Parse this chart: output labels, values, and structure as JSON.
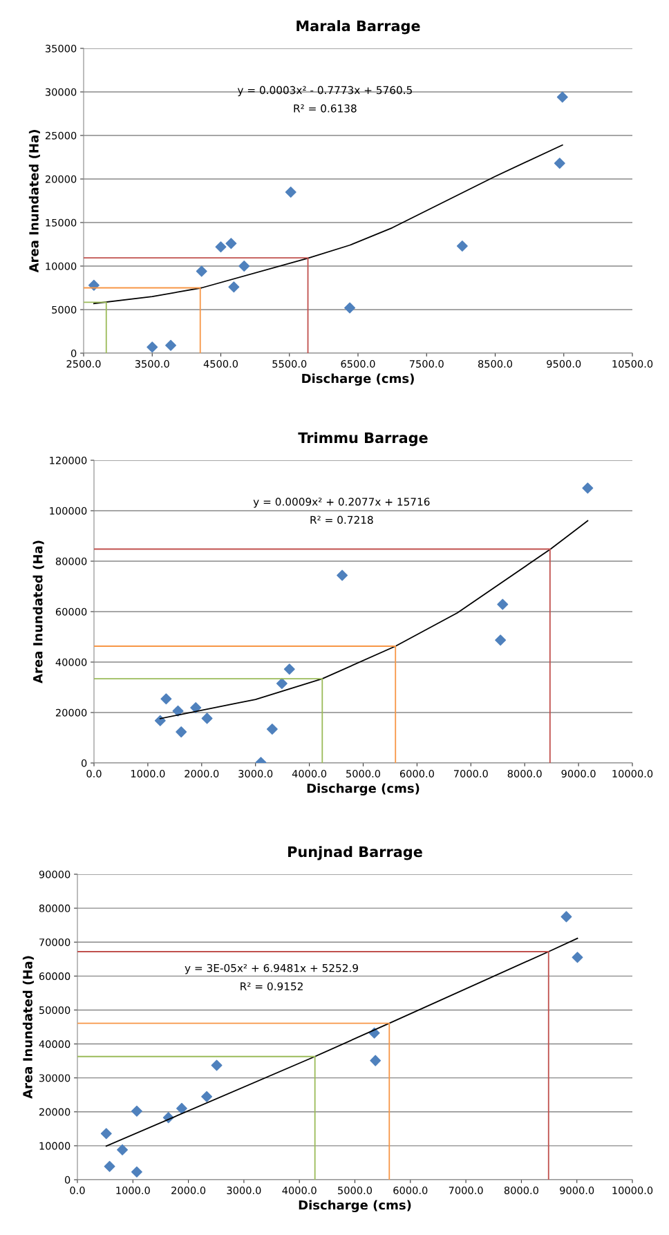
{
  "chart_data": [
    {
      "type": "scatter",
      "title": "Marala Barrage",
      "xlabel": "Discharge (cms)",
      "ylabel": "Area Inundated (Ha)",
      "annotations": [
        "y = 0.0003x² - 0.7773x + 5760.5",
        "R² = 0.6138"
      ],
      "grid": "y",
      "legend": false,
      "xlim": [
        2500,
        10500
      ],
      "xticks": [
        {
          "value": 2500,
          "label": "2500.0"
        },
        {
          "value": 3500,
          "label": "3500.0"
        },
        {
          "value": 4500,
          "label": "4500.0"
        },
        {
          "value": 5500,
          "label": "5500.0"
        },
        {
          "value": 6500,
          "label": "6500.0"
        },
        {
          "value": 7500,
          "label": "7500.0"
        },
        {
          "value": 8500,
          "label": "8500.0"
        },
        {
          "value": 9500,
          "label": "9500.0"
        },
        {
          "value": 10500,
          "label": "10500.0"
        }
      ],
      "ylim": [
        0,
        35000
      ],
      "yticks": [
        0,
        5000,
        10000,
        15000,
        20000,
        25000,
        30000,
        35000
      ],
      "series": [
        {
          "marker": "diamond",
          "color": "#4f81bd",
          "x": [
            2650,
            3500,
            3770,
            4220,
            4500,
            4650,
            4690,
            4840,
            5520,
            6380,
            8020,
            9440,
            9480
          ],
          "values": [
            7800,
            700,
            900,
            9400,
            12200,
            12600,
            7600,
            10000,
            18500,
            5200,
            12300,
            21800,
            29400
          ]
        },
        {
          "type": "line",
          "marker": "none",
          "color": "#000000",
          "x": [
            2650,
            3500,
            4220,
            5770,
            6380,
            7000,
            8500,
            9480
          ],
          "values": [
            5700,
            6500,
            7500,
            10900,
            12400,
            14400,
            20300,
            23900
          ]
        },
        {
          "type": "line",
          "marker": "none",
          "color": "#9bbb59",
          "x": [
            2500,
            2830,
            2830
          ],
          "values": [
            5850,
            5850,
            0
          ]
        },
        {
          "type": "line",
          "marker": "none",
          "color": "#f79646",
          "x": [
            2500,
            4200,
            4200
          ],
          "values": [
            7500,
            7500,
            0
          ]
        },
        {
          "type": "line",
          "marker": "none",
          "color": "#c0504d",
          "x": [
            2500,
            5770,
            5770
          ],
          "values": [
            10950,
            10950,
            0
          ]
        }
      ]
    },
    {
      "type": "scatter",
      "title": "Trimmu Barrage",
      "xlabel": "Discharge (cms)",
      "ylabel": "Area Inundated (Ha)",
      "annotations": [
        "y = 0.0009x² + 0.2077x + 15716",
        "R² = 0.7218"
      ],
      "grid": "y",
      "legend": false,
      "xlim": [
        0,
        10000
      ],
      "xticks": [
        {
          "value": 0,
          "label": "0.0"
        },
        {
          "value": 1000,
          "label": "1000.0"
        },
        {
          "value": 2000,
          "label": "2000.0"
        },
        {
          "value": 3000,
          "label": "3000.0"
        },
        {
          "value": 4000,
          "label": "4000.0"
        },
        {
          "value": 5000,
          "label": "5000.0"
        },
        {
          "value": 6000,
          "label": "6000.0"
        },
        {
          "value": 7000,
          "label": "7000.0"
        },
        {
          "value": 8000,
          "label": "8000.0"
        },
        {
          "value": 9000,
          "label": "9000.0"
        },
        {
          "value": 10000,
          "label": "10000.0"
        }
      ],
      "ylim": [
        0,
        120000
      ],
      "yticks": [
        0,
        20000,
        40000,
        60000,
        80000,
        100000,
        120000
      ],
      "series": [
        {
          "marker": "diamond",
          "color": "#4f81bd",
          "x": [
            1230,
            1340,
            1560,
            1620,
            1890,
            2100,
            3100,
            3310,
            3490,
            3630,
            4610,
            7550,
            7590,
            9170
          ],
          "values": [
            16800,
            25400,
            20600,
            12300,
            21900,
            17700,
            200,
            13400,
            31500,
            37200,
            74400,
            48700,
            62900,
            109000
          ]
        },
        {
          "type": "line",
          "marker": "none",
          "color": "#000000",
          "x": [
            1230,
            3000,
            4240,
            5600,
            6750,
            8480,
            9170
          ],
          "values": [
            17600,
            25200,
            33400,
            46300,
            59500,
            84800,
            96000
          ]
        },
        {
          "type": "line",
          "marker": "none",
          "color": "#9bbb59",
          "x": [
            0,
            4240,
            4240
          ],
          "values": [
            33400,
            33400,
            0
          ]
        },
        {
          "type": "line",
          "marker": "none",
          "color": "#f79646",
          "x": [
            0,
            5600,
            5600
          ],
          "values": [
            46300,
            46300,
            0
          ]
        },
        {
          "type": "line",
          "marker": "none",
          "color": "#c0504d",
          "x": [
            0,
            8470,
            8470
          ],
          "values": [
            84800,
            84800,
            0
          ]
        }
      ]
    },
    {
      "type": "scatter",
      "title": "Punjnad Barrage",
      "xlabel": "Discharge (cms)",
      "ylabel": "Area Inundated (Ha)",
      "annotations": [
        "y = 3E-05x² + 6.9481x + 5252.9",
        "R² = 0.9152"
      ],
      "grid": "y",
      "legend": false,
      "xlim": [
        0,
        10000
      ],
      "xticks": [
        {
          "value": 0,
          "label": "0.0"
        },
        {
          "value": 1000,
          "label": "1000.0"
        },
        {
          "value": 2000,
          "label": "2000.0"
        },
        {
          "value": 3000,
          "label": "3000.0"
        },
        {
          "value": 4000,
          "label": "4000.0"
        },
        {
          "value": 5000,
          "label": "5000.0"
        },
        {
          "value": 6000,
          "label": "6000.0"
        },
        {
          "value": 7000,
          "label": "7000.0"
        },
        {
          "value": 8000,
          "label": "8000.0"
        },
        {
          "value": 9000,
          "label": "9000.0"
        },
        {
          "value": 10000,
          "label": "10000.0"
        }
      ],
      "ylim": [
        0,
        90000
      ],
      "yticks": [
        0,
        10000,
        20000,
        30000,
        40000,
        50000,
        60000,
        70000,
        80000,
        90000
      ],
      "series": [
        {
          "marker": "diamond",
          "color": "#4f81bd",
          "x": [
            520,
            580,
            810,
            1070,
            1070,
            1640,
            1880,
            2330,
            2510,
            5350,
            5370,
            8810,
            9010
          ],
          "values": [
            13600,
            3900,
            8800,
            2300,
            20200,
            18300,
            21000,
            24500,
            33700,
            43200,
            35100,
            77500,
            65500
          ]
        },
        {
          "type": "line",
          "marker": "none",
          "color": "#000000",
          "x": [
            520,
            4280,
            5620,
            8490,
            9010
          ],
          "values": [
            9900,
            36300,
            46100,
            67200,
            71100
          ]
        },
        {
          "type": "line",
          "marker": "none",
          "color": "#9bbb59",
          "x": [
            0,
            4280,
            4280
          ],
          "values": [
            36300,
            36300,
            0
          ]
        },
        {
          "type": "line",
          "marker": "none",
          "color": "#f79646",
          "x": [
            0,
            5620,
            5620
          ],
          "values": [
            46100,
            46100,
            0
          ]
        },
        {
          "type": "line",
          "marker": "none",
          "color": "#c0504d",
          "x": [
            0,
            8490,
            8490
          ],
          "values": [
            67200,
            67200,
            0
          ]
        }
      ]
    }
  ]
}
